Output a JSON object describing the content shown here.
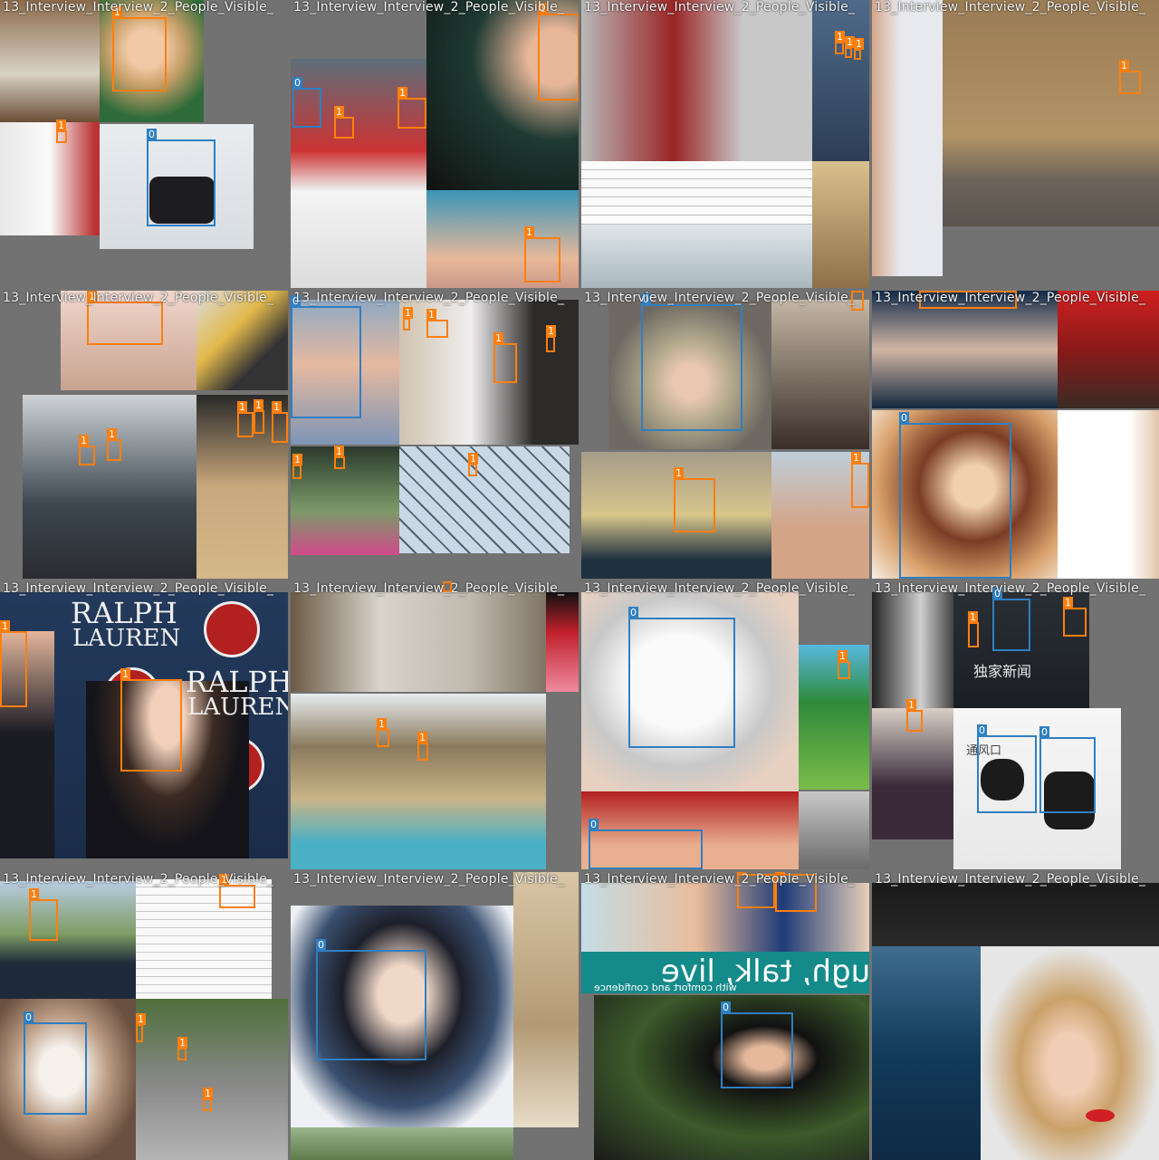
{
  "grid": {
    "tile_title": "13_Interview_Interview_2_People_Visible_",
    "tiles": [
      {
        "title": "13_Interview_Interview_2_People_Visible_"
      },
      {
        "title": "13_Interview_Interview_2_People_Visible_"
      },
      {
        "title": "13_Interview_Interview_2_People_Visible_"
      },
      {
        "title": "13_Interview_Interview_2_People_Visible_"
      },
      {
        "title": "13_Interview_Interview_2_People_Visible_"
      },
      {
        "title": "13_Interview_Interview_2_People_Visible_"
      },
      {
        "title": "13_Interview_Interview_2_People_Visible_"
      },
      {
        "title": "13_Interview_Interview_2_People_Visible_"
      },
      {
        "title": "13_Interview_Interview_2_People_Visible_"
      },
      {
        "title": "13_Interview_Interview_2_People_Visible_"
      },
      {
        "title": "13_Interview_Interview_2_People_Visible_"
      },
      {
        "title": "13_Interview_Interview_2_People_Visible_"
      },
      {
        "title": "13_Interview_Interview_2_People_Visible_"
      },
      {
        "title": "13_Interview_Interview_2_People_Visible_"
      },
      {
        "title": "13_Interview_Interview_2_People_Visible_"
      },
      {
        "title": "13_Interview_Interview_2_People_Visible_"
      }
    ]
  },
  "labels": {
    "class0": "0",
    "class1": "1"
  },
  "texts": {
    "ralph": "RALPH",
    "lauren": "LAUREN",
    "laugh": "Laugh, talk, live",
    "confidence": "with comfort and confidence",
    "chinese_news": "独家新闻",
    "vent": "通风口"
  },
  "colors": {
    "class0": "#2f7fc1",
    "class1": "#ff7f0e",
    "pad": "#727272"
  }
}
